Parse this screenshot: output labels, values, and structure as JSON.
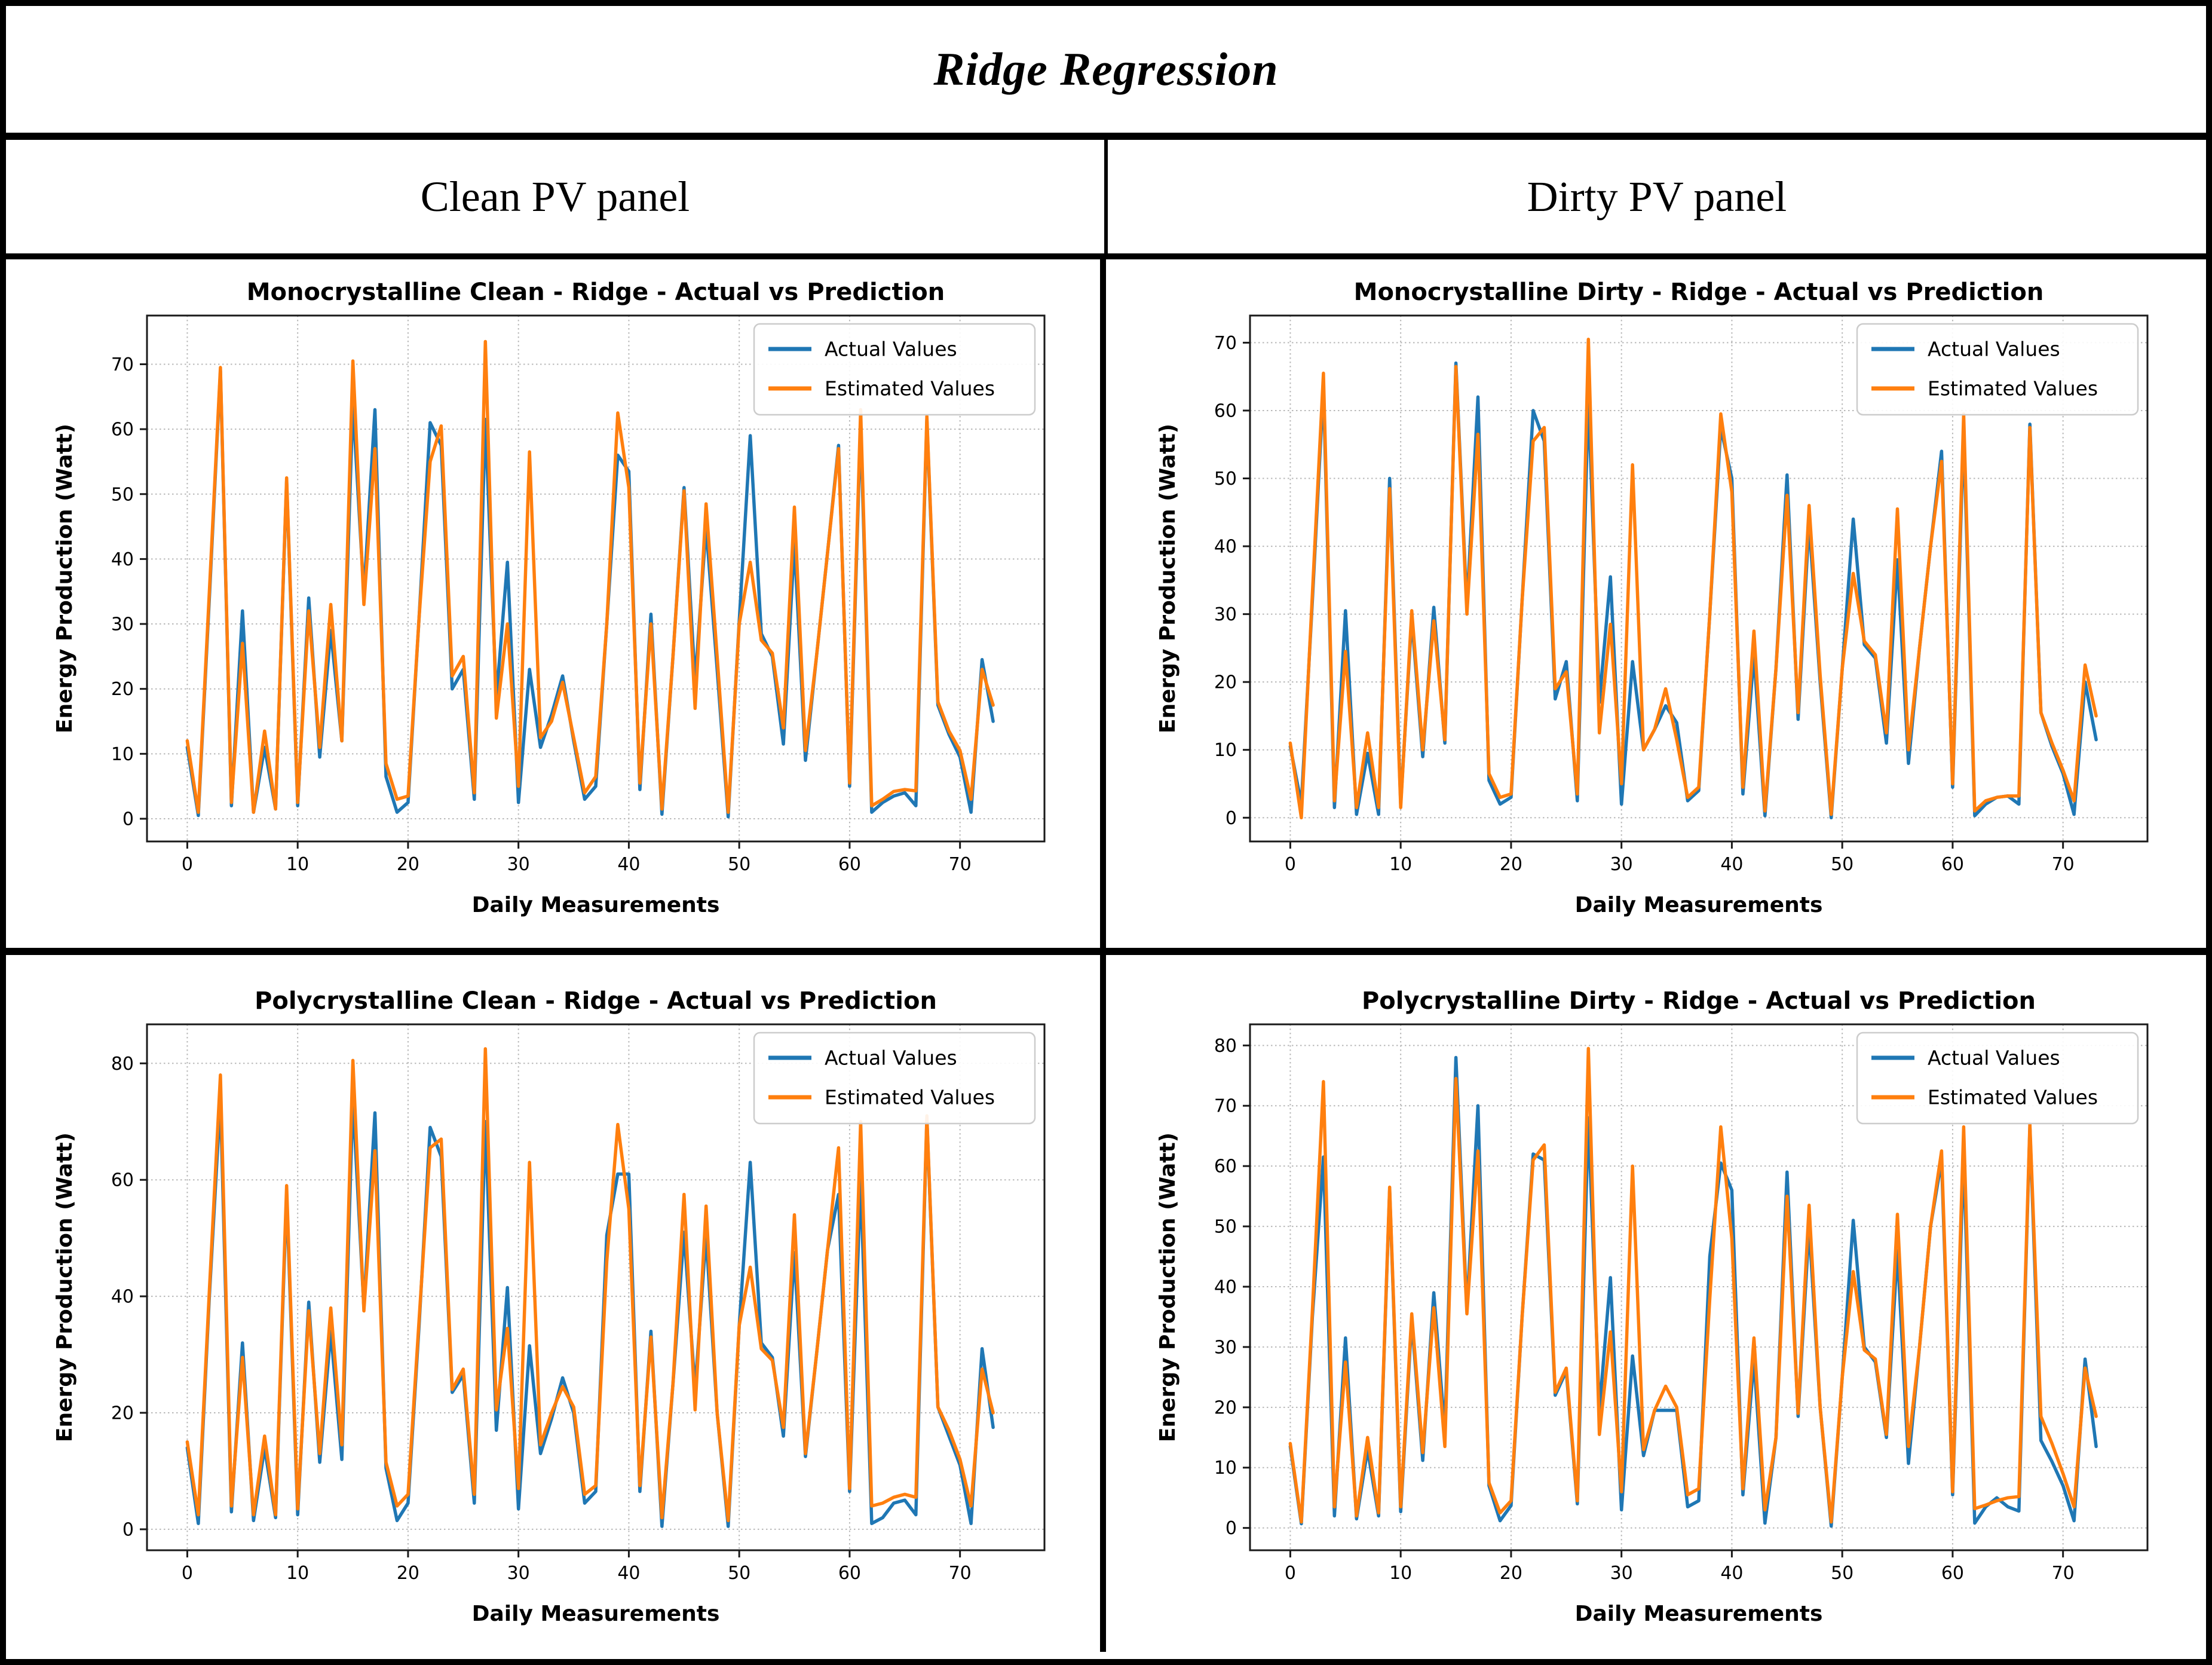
{
  "header": {
    "title": "Ridge Regression",
    "columns": [
      {
        "label": "Clean PV panel"
      },
      {
        "label": "Dirty PV panel"
      }
    ]
  },
  "colors": {
    "actual": "#1f77b4",
    "estimated": "#ff7f0e",
    "axis": "#1a1a1a",
    "grid": "#b8b8b8",
    "legend_border": "#cccccc"
  },
  "chart_data": [
    {
      "type": "line",
      "title": "Monocrystalline Clean  - Ridge - Actual vs Prediction",
      "xlabel": "Daily Measurements",
      "ylabel": "Energy Production (Watt)",
      "x_range": [
        0,
        73
      ],
      "xlim": [
        -3.65,
        77.65
      ],
      "ylim": [
        -3.5,
        77.5
      ],
      "xticks": [
        0,
        10,
        20,
        30,
        40,
        50,
        60,
        70
      ],
      "yticks": [
        0,
        10,
        20,
        30,
        40,
        50,
        60,
        70
      ],
      "grid": "dotted",
      "legend_position": "upper right",
      "series": [
        {
          "name": "Actual Values",
          "color": "#1f77b4",
          "values": [
            11,
            0.5,
            34,
            69,
            2,
            32,
            1,
            11,
            1.5,
            52,
            2,
            34,
            9.5,
            29,
            12,
            64,
            34.5,
            63,
            6.5,
            1,
            2.5,
            31,
            61,
            57.5,
            20,
            23,
            3,
            61.5,
            18.5,
            39.5,
            2.5,
            23,
            11,
            16,
            22,
            12,
            3,
            5,
            30,
            56,
            53.5,
            4.5,
            31.5,
            0.7,
            25,
            51,
            21,
            45,
            23,
            0.3,
            30.5,
            59,
            28.5,
            25,
            11.5,
            42.5,
            9,
            25,
            41,
            57.5,
            5,
            61,
            1,
            2.5,
            3.5,
            4,
            2,
            61.5,
            17.5,
            13,
            9.5,
            1,
            24.5,
            15
          ]
        },
        {
          "name": "Estimated Values",
          "color": "#ff7f0e",
          "values": [
            12,
            1,
            35,
            69.5,
            2.5,
            27,
            1,
            13.5,
            1.5,
            52.5,
            2.5,
            32,
            11,
            33,
            12,
            70.5,
            33,
            57,
            8.5,
            3,
            3.5,
            31,
            55,
            60.5,
            22,
            25,
            4,
            73.5,
            15.5,
            30,
            5,
            56.5,
            12.5,
            15,
            21,
            12.5,
            4,
            6.5,
            30,
            62.5,
            51,
            5.5,
            30,
            1.5,
            25,
            50.5,
            17,
            48.5,
            25,
            1,
            30,
            39.5,
            27.5,
            25.5,
            14,
            48,
            10.5,
            25,
            41,
            57,
            5.5,
            63,
            2,
            3,
            4.2,
            4.5,
            4.3,
            62,
            18,
            13.5,
            10.5,
            3,
            23,
            17.5
          ]
        }
      ]
    },
    {
      "type": "line",
      "title": "Monocrystalline Dirty - Ridge - Actual vs Prediction",
      "xlabel": "Daily Measurements",
      "ylabel": "Energy Production (Watt)",
      "x_range": [
        0,
        73
      ],
      "xlim": [
        -3.65,
        77.65
      ],
      "ylim": [
        -3.5,
        74
      ],
      "xticks": [
        0,
        10,
        20,
        30,
        40,
        50,
        60,
        70
      ],
      "yticks": [
        0,
        10,
        20,
        30,
        40,
        50,
        60,
        70
      ],
      "grid": "dotted",
      "legend_position": "upper right",
      "series": [
        {
          "name": "Actual Values",
          "color": "#1f77b4",
          "values": [
            10.5,
            2,
            32,
            63.5,
            1.5,
            30.5,
            0.5,
            9.5,
            0.5,
            50,
            2,
            29.5,
            9,
            31,
            11,
            67,
            31,
            62,
            5.5,
            2,
            3,
            32,
            60,
            55.5,
            17.5,
            23,
            2.5,
            62,
            17,
            35.5,
            2,
            23,
            10,
            13,
            16.5,
            14,
            2.5,
            4,
            30,
            57.5,
            50,
            3.5,
            24,
            0.3,
            22,
            50.5,
            14.5,
            43.5,
            20,
            0,
            22,
            44,
            25.5,
            23.5,
            11,
            38,
            8,
            25,
            40,
            54,
            4.5,
            57,
            0.3,
            2,
            3,
            3.2,
            2,
            58,
            15.5,
            10.5,
            6.5,
            0.5,
            20,
            11.5
          ]
        },
        {
          "name": "Estimated Values",
          "color": "#ff7f0e",
          "values": [
            11,
            0,
            33,
            65.5,
            2.5,
            24.5,
            1.5,
            12.5,
            1.5,
            48.5,
            1.5,
            30.5,
            10,
            29,
            11.5,
            66.5,
            30,
            56.5,
            6.5,
            3,
            3.5,
            32,
            55.5,
            57.5,
            19,
            21.5,
            3.5,
            70.5,
            12.5,
            28.5,
            5,
            52,
            10,
            13,
            19,
            11.5,
            3,
            4.5,
            30,
            59.5,
            48,
            4.5,
            27.5,
            1,
            22,
            47.5,
            15.5,
            46,
            21,
            0.5,
            22,
            36,
            26,
            24,
            12.5,
            45.5,
            10,
            25,
            40,
            52.5,
            5,
            59.5,
            1,
            2.5,
            3,
            3.2,
            3.2,
            57.5,
            15.5,
            11,
            7,
            2.5,
            22.5,
            15
          ]
        }
      ]
    },
    {
      "type": "line",
      "title": "Polycrystalline Clean - Ridge - Actual vs Prediction",
      "xlabel": "Daily Measurements",
      "ylabel": "Energy Production (Watt)",
      "x_range": [
        0,
        73
      ],
      "xlim": [
        -3.65,
        77.65
      ],
      "ylim": [
        -3.6,
        86.7
      ],
      "xticks": [
        0,
        10,
        20,
        30,
        40,
        50,
        60,
        70
      ],
      "yticks": [
        0,
        20,
        40,
        60,
        80
      ],
      "grid": "dotted",
      "legend_position": "upper right",
      "series": [
        {
          "name": "Actual Values",
          "color": "#1f77b4",
          "values": [
            14,
            1,
            40,
            74,
            3,
            32,
            1.5,
            14,
            2,
            57.5,
            2.5,
            39,
            11.5,
            34,
            12,
            74,
            38,
            71.5,
            10.5,
            1.5,
            4.5,
            35,
            69,
            64,
            23.5,
            26.5,
            4.5,
            70,
            17,
            41.5,
            3.5,
            31.5,
            13,
            19,
            26,
            20,
            4.5,
            6.5,
            50.5,
            61,
            61,
            6.5,
            34,
            0.5,
            25,
            51,
            24,
            50.5,
            20,
            0.5,
            35,
            63,
            32,
            29.5,
            16,
            47.5,
            12.5,
            30,
            48,
            57.5,
            6.5,
            60,
            1,
            2,
            4.5,
            5,
            2.5,
            70.5,
            21,
            16,
            11,
            1,
            31,
            17.5
          ]
        },
        {
          "name": "Estimated Values",
          "color": "#ff7f0e",
          "values": [
            15,
            2.5,
            41,
            78,
            4,
            29.5,
            2.5,
            16,
            2.5,
            59,
            3.5,
            37.5,
            13,
            38,
            14.5,
            80.5,
            37.5,
            65,
            11.5,
            4,
            6,
            36,
            65.5,
            67,
            24,
            27.5,
            6,
            82.5,
            20.5,
            34.5,
            7,
            63,
            14.5,
            20,
            24.5,
            21,
            6,
            7.5,
            46,
            69.5,
            55,
            7.5,
            33,
            2,
            25,
            57.5,
            20.5,
            55.5,
            20,
            1.5,
            35,
            45,
            31,
            29,
            17.5,
            54,
            13,
            30,
            48,
            65.5,
            7,
            70,
            4,
            4.5,
            5.5,
            6,
            5.5,
            71,
            21,
            17,
            12,
            4,
            27.5,
            20
          ]
        }
      ]
    },
    {
      "type": "line",
      "title": "Polycrystalline Dirty - Ridge - Actual vs Prediction",
      "xlabel": "Daily Measurements",
      "ylabel": "Energy Production (Watt)",
      "x_range": [
        0,
        73
      ],
      "xlim": [
        -3.65,
        77.65
      ],
      "ylim": [
        -3.7,
        83.5
      ],
      "xticks": [
        0,
        10,
        20,
        30,
        40,
        50,
        60,
        70
      ],
      "yticks": [
        0,
        10,
        20,
        30,
        40,
        50,
        60,
        70,
        80
      ],
      "grid": "dotted",
      "legend_position": "upper right",
      "series": [
        {
          "name": "Actual Values",
          "color": "#1f77b4",
          "values": [
            13.5,
            0.7,
            35,
            61.5,
            2,
            31.5,
            1.5,
            13,
            2,
            56,
            2.7,
            34.5,
            11.2,
            39,
            16,
            78,
            36,
            70,
            7,
            1.2,
            3.7,
            35,
            62,
            61,
            22,
            26,
            4,
            68,
            19.5,
            41.5,
            3,
            28.5,
            12,
            19.5,
            19.5,
            19.5,
            3.5,
            4.5,
            45,
            60.5,
            56,
            5.5,
            28,
            0.8,
            15,
            59,
            18.5,
            50,
            20,
            0.3,
            25,
            51,
            30,
            27.5,
            15,
            46,
            10.7,
            30,
            50,
            61,
            5.5,
            62,
            0.8,
            3.5,
            5,
            3.5,
            2.8,
            66.5,
            14.5,
            11,
            7,
            1.2,
            28,
            13.5
          ]
        },
        {
          "name": "Estimated Values",
          "color": "#ff7f0e",
          "values": [
            14,
            1,
            36,
            74,
            3.5,
            27.5,
            2,
            15,
            2.5,
            56.5,
            3.5,
            35.5,
            12.5,
            36.5,
            13.5,
            74.5,
            35.5,
            62.5,
            7.5,
            2.5,
            4.5,
            35,
            61,
            63.5,
            22.5,
            26.5,
            4.5,
            79.5,
            15.5,
            32.5,
            6,
            60,
            13,
            19.5,
            23.5,
            20,
            5.5,
            6.5,
            38,
            66.5,
            48,
            6.5,
            31.5,
            3,
            15,
            55,
            19,
            53.5,
            20,
            1,
            25,
            42.5,
            29.5,
            28,
            15.5,
            52,
            13.5,
            30,
            50,
            62.5,
            6,
            66.5,
            3.2,
            3.8,
            4.5,
            5,
            5.2,
            67,
            18.5,
            14,
            9,
            3.5,
            26.5,
            18.5
          ]
        }
      ]
    }
  ]
}
